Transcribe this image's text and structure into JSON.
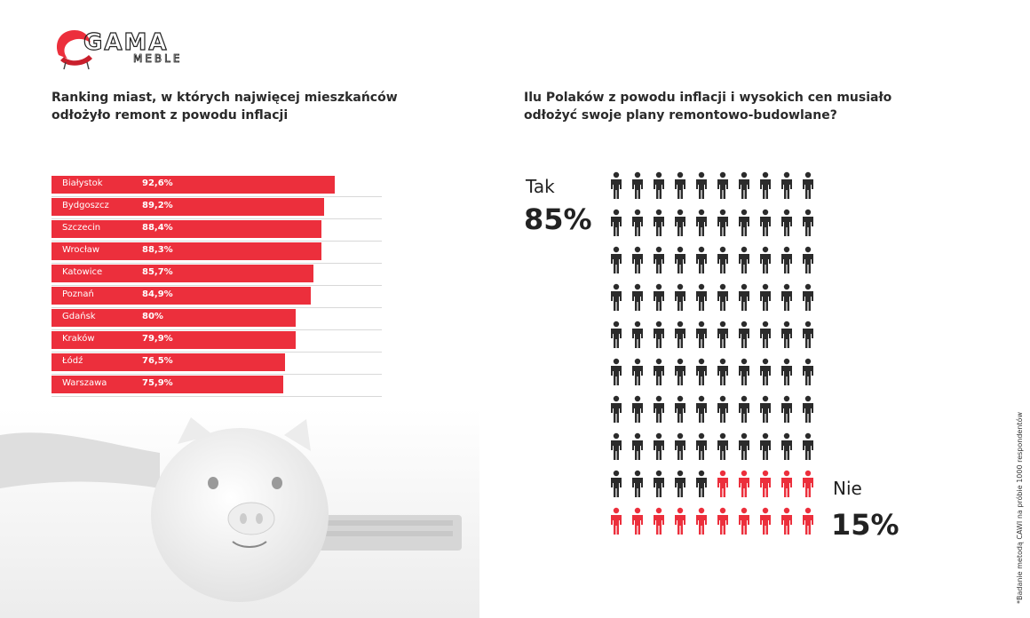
{
  "brand": {
    "name": "GAMA",
    "sub": "MEBLE",
    "accent": "#ec2f3c"
  },
  "left_title": [
    "Ranking miast, w których najwięcej mieszkańców",
    "odłożyło remont z powodu inflacji"
  ],
  "right_title": [
    "Ilu Polaków z powodu inflacji i wysokich cen musiało",
    "odłożyć swoje plany remontowo-budowlane?"
  ],
  "footnote": "*Badanie metodą CAWI na próbie 1000 respondentów",
  "chart_data": [
    {
      "type": "bar",
      "orientation": "horizontal",
      "categories": [
        "Białystok",
        "Bydgoszcz",
        "Szczecin",
        "Wrocław",
        "Katowice",
        "Poznań",
        "Gdańsk",
        "Kraków",
        "Łódź",
        "Warszawa"
      ],
      "values": [
        92.6,
        89.2,
        88.4,
        88.3,
        85.7,
        84.9,
        80,
        79.9,
        76.5,
        75.9
      ],
      "data_labels": [
        "92,6%",
        "89,2%",
        "88,4%",
        "88,3%",
        "85,7%",
        "84,9%",
        "80%",
        "79,9%",
        "76,5%",
        "75,9%"
      ],
      "bar_color": "#ec2f3c",
      "unit": "%"
    },
    {
      "type": "pictogram",
      "total": 100,
      "series": [
        {
          "name": "Tak",
          "value": 85,
          "label": "85%",
          "color": "#2b2b2b"
        },
        {
          "name": "Nie",
          "value": 15,
          "label": "15%",
          "color": "#ec2f3c"
        }
      ]
    }
  ]
}
